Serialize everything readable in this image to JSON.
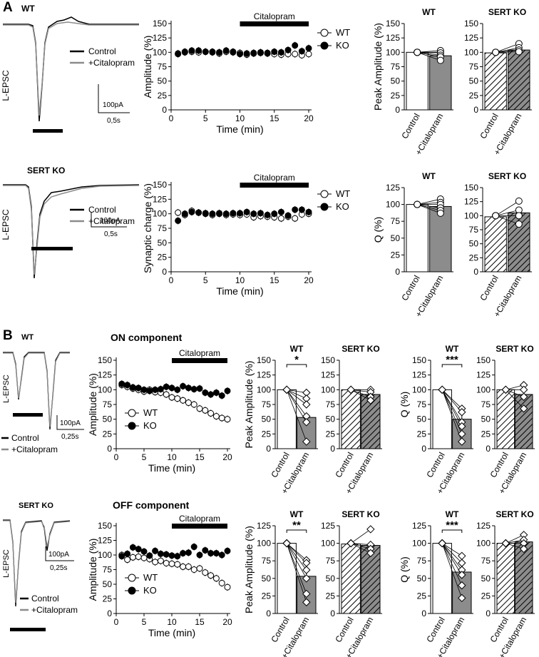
{
  "figure": {
    "panel_a_label": "A",
    "panel_b_label": "B",
    "wt": "WT",
    "sert_ko": "SERT KO",
    "l_epsc": "L-EPSC",
    "control": "Control",
    "citalopram": "+Citalopram",
    "scale_pa": "100pA",
    "scale_05s": "0,5s",
    "scale_025s": "0,25s",
    "on_component": "ON component",
    "off_component": "OFF component",
    "bar_label": "Citalopram"
  },
  "colors": {
    "control_trace": "#000000",
    "citalopram_trace": "#8c8c8c",
    "bar_fill": "#8c8c8c"
  },
  "chart_data": [
    {
      "id": "A-wt-time",
      "type": "line",
      "title": "",
      "xlabel": "Time (min)",
      "ylabel": "Amplitude (%)",
      "xlim": [
        0,
        20
      ],
      "ylim": [
        0,
        150
      ],
      "xticks": [
        0,
        5,
        10,
        15,
        20
      ],
      "yticks": [
        0,
        25,
        50,
        75,
        100,
        125,
        150
      ],
      "legend_position": "top-right",
      "annotation": "Citalopram",
      "annotation_range": [
        10,
        20
      ],
      "series": [
        {
          "name": "WT",
          "marker": "open",
          "x": [
            1,
            2,
            3,
            4,
            5,
            6,
            7,
            8,
            9,
            10,
            11,
            12,
            13,
            14,
            15,
            16,
            17,
            18,
            19,
            20
          ],
          "y": [
            97,
            100,
            101,
            100,
            101,
            100,
            98,
            101,
            100,
            99,
            96,
            99,
            100,
            98,
            97,
            96,
            97,
            97,
            95,
            97
          ]
        },
        {
          "name": "KO",
          "marker": "filled",
          "x": [
            1,
            2,
            3,
            4,
            5,
            6,
            7,
            8,
            9,
            10,
            11,
            12,
            13,
            14,
            15,
            16,
            17,
            18,
            19,
            20
          ],
          "y": [
            98,
            101,
            103,
            103,
            101,
            101,
            100,
            103,
            101,
            97,
            98,
            98,
            99,
            99,
            101,
            100,
            104,
            112,
            102,
            107
          ]
        }
      ]
    },
    {
      "id": "A-ko-time",
      "type": "line",
      "title": "",
      "xlabel": "Time (min)",
      "ylabel": "Synaptic charge (%)",
      "xlim": [
        0,
        20
      ],
      "ylim": [
        0,
        150
      ],
      "xticks": [
        0,
        5,
        10,
        15,
        20
      ],
      "yticks": [
        0,
        25,
        50,
        75,
        100,
        125,
        150
      ],
      "legend_position": "top-right",
      "annotation": "Citalopram",
      "annotation_range": [
        10,
        20
      ],
      "series": [
        {
          "name": "WT",
          "marker": "open",
          "x": [
            1,
            2,
            3,
            4,
            5,
            6,
            7,
            8,
            9,
            10,
            11,
            12,
            13,
            14,
            15,
            16,
            17,
            18,
            19,
            20
          ],
          "y": [
            102,
            98,
            105,
            102,
            100,
            98,
            100,
            98,
            99,
            98,
            99,
            94,
            96,
            95,
            94,
            92,
            95,
            92,
            99,
            100
          ]
        },
        {
          "name": "KO",
          "marker": "filled",
          "x": [
            1,
            2,
            3,
            4,
            5,
            6,
            7,
            8,
            9,
            10,
            11,
            12,
            13,
            14,
            15,
            16,
            17,
            18,
            19,
            20
          ],
          "y": [
            88,
            100,
            103,
            102,
            101,
            100,
            101,
            100,
            101,
            101,
            103,
            100,
            101,
            98,
            100,
            103,
            97,
            107,
            107,
            103
          ]
        }
      ]
    },
    {
      "id": "B-on-time",
      "type": "line",
      "title": "ON component",
      "xlabel": "Time (min)",
      "ylabel": "Amplitude (%)",
      "xlim": [
        0,
        20
      ],
      "ylim": [
        0,
        150
      ],
      "xticks": [
        0,
        5,
        10,
        15,
        20
      ],
      "yticks": [
        0,
        25,
        50,
        75,
        100,
        125,
        150
      ],
      "legend_position": "bottom-left",
      "annotation": "Citalopram",
      "annotation_range": [
        10,
        20
      ],
      "series": [
        {
          "name": "WT",
          "marker": "open",
          "x": [
            1,
            2,
            3,
            4,
            5,
            6,
            7,
            8,
            9,
            10,
            11,
            12,
            13,
            14,
            15,
            16,
            17,
            18,
            19,
            20
          ],
          "y": [
            108,
            105,
            102,
            100,
            97,
            100,
            96,
            95,
            92,
            87,
            85,
            82,
            78,
            75,
            68,
            65,
            60,
            55,
            52,
            50
          ]
        },
        {
          "name": "KO",
          "marker": "filled",
          "x": [
            1,
            2,
            3,
            4,
            5,
            6,
            7,
            8,
            9,
            10,
            11,
            12,
            13,
            14,
            15,
            16,
            17,
            18,
            19,
            20
          ],
          "y": [
            110,
            108,
            104,
            103,
            100,
            98,
            100,
            101,
            105,
            103,
            100,
            106,
            103,
            101,
            102,
            95,
            92,
            95,
            90,
            98
          ]
        }
      ]
    },
    {
      "id": "B-off-time",
      "type": "line",
      "title": "OFF component",
      "xlabel": "Time (min)",
      "ylabel": "Amplitude (%)",
      "xlim": [
        0,
        20
      ],
      "ylim": [
        0,
        150
      ],
      "xticks": [
        0,
        5,
        10,
        15,
        20
      ],
      "yticks": [
        0,
        25,
        50,
        75,
        100,
        125,
        150
      ],
      "legend_position": "bottom-left",
      "annotation": "Citalopram",
      "annotation_range": [
        10,
        20
      ],
      "series": [
        {
          "name": "WT",
          "marker": "open",
          "x": [
            1,
            2,
            3,
            4,
            5,
            6,
            7,
            8,
            9,
            10,
            11,
            12,
            13,
            14,
            15,
            16,
            17,
            18,
            19,
            20
          ],
          "y": [
            100,
            92,
            96,
            97,
            95,
            93,
            88,
            90,
            86,
            85,
            84,
            80,
            80,
            75,
            77,
            70,
            65,
            60,
            52,
            45
          ]
        },
        {
          "name": "KO",
          "marker": "filled",
          "x": [
            1,
            2,
            3,
            4,
            5,
            6,
            7,
            8,
            9,
            10,
            11,
            12,
            13,
            14,
            15,
            16,
            17,
            18,
            19,
            20
          ],
          "y": [
            98,
            102,
            113,
            110,
            106,
            99,
            107,
            102,
            101,
            99,
            98,
            103,
            104,
            114,
            100,
            108,
            103,
            103,
            100,
            107
          ]
        }
      ]
    },
    {
      "id": "A-wt-peak",
      "type": "bar",
      "title": "WT",
      "ylabel": "Peak Amplitude (%)",
      "ylim": [
        0,
        150
      ],
      "yticks": [
        0,
        25,
        50,
        75,
        100,
        125,
        150
      ],
      "categories": [
        "Control",
        "+Citalopram"
      ],
      "values": [
        100,
        94
      ],
      "hatched": false,
      "marker": "circle",
      "paired": [
        [
          100,
          100
        ],
        [
          100,
          103
        ],
        [
          100,
          99
        ],
        [
          100,
          95
        ],
        [
          100,
          92
        ],
        [
          100,
          86
        ]
      ],
      "significance": ""
    },
    {
      "id": "A-ko-peak",
      "type": "bar",
      "title": "SERT KO",
      "ylabel": "",
      "ylim": [
        0,
        150
      ],
      "yticks": [
        0,
        25,
        50,
        75,
        100,
        125,
        150
      ],
      "categories": [
        "Control",
        "+Citalopram"
      ],
      "values": [
        99,
        104
      ],
      "hatched": true,
      "marker": "circle",
      "paired": [
        [
          100,
          115
        ],
        [
          100,
          108
        ],
        [
          100,
          104
        ],
        [
          100,
          101
        ]
      ],
      "significance": ""
    },
    {
      "id": "A-wt-q",
      "type": "bar",
      "title": "WT",
      "ylabel": "Q (%)",
      "ylim": [
        0,
        125
      ],
      "yticks": [
        0,
        25,
        50,
        75,
        100,
        125
      ],
      "categories": [
        "Control",
        "+Citalopram"
      ],
      "values": [
        100,
        97
      ],
      "hatched": false,
      "marker": "circle",
      "paired": [
        [
          100,
          108
        ],
        [
          100,
          103
        ],
        [
          100,
          100
        ],
        [
          100,
          95
        ],
        [
          100,
          91
        ],
        [
          100,
          87
        ]
      ],
      "significance": ""
    },
    {
      "id": "A-ko-q",
      "type": "bar",
      "title": "SERT KO",
      "ylabel": "",
      "ylim": [
        0,
        150
      ],
      "yticks": [
        0,
        25,
        50,
        75,
        100,
        125,
        150
      ],
      "categories": [
        "Control",
        "+Citalopram"
      ],
      "values": [
        98,
        105
      ],
      "hatched": true,
      "marker": "circle",
      "paired": [
        [
          100,
          126
        ],
        [
          100,
          110
        ],
        [
          100,
          100
        ],
        [
          100,
          85
        ]
      ],
      "significance": ""
    },
    {
      "id": "B-on-wt-peak",
      "type": "bar",
      "title": "WT",
      "ylabel": "Peak Amplitude (%)",
      "ylim": [
        0,
        150
      ],
      "yticks": [
        0,
        25,
        50,
        75,
        100,
        125,
        150
      ],
      "categories": [
        "Control",
        "+Citalopram"
      ],
      "values": [
        100,
        53
      ],
      "hatched": false,
      "marker": "diamond",
      "paired": [
        [
          100,
          95
        ],
        [
          100,
          85
        ],
        [
          100,
          75
        ],
        [
          100,
          55
        ],
        [
          100,
          45
        ],
        [
          100,
          12
        ]
      ],
      "significance": "*"
    },
    {
      "id": "B-on-ko-peak",
      "type": "bar",
      "title": "SERT KO",
      "ylabel": "",
      "ylim": [
        0,
        150
      ],
      "yticks": [
        0,
        25,
        50,
        75,
        100,
        125,
        150
      ],
      "categories": [
        "Control",
        "+Citalopram"
      ],
      "values": [
        100,
        92
      ],
      "hatched": true,
      "marker": "diamond",
      "paired": [
        [
          100,
          100
        ],
        [
          100,
          96
        ],
        [
          100,
          88
        ],
        [
          100,
          82
        ]
      ],
      "significance": ""
    },
    {
      "id": "B-on-wt-q",
      "type": "bar",
      "title": "WT",
      "ylabel": "Q (%)",
      "ylim": [
        0,
        150
      ],
      "yticks": [
        0,
        25,
        50,
        75,
        100,
        125,
        150
      ],
      "categories": [
        "Control",
        "+Citalopram"
      ],
      "values": [
        100,
        50
      ],
      "hatched": false,
      "marker": "diamond",
      "paired": [
        [
          100,
          68
        ],
        [
          100,
          62
        ],
        [
          100,
          45
        ],
        [
          100,
          38
        ],
        [
          100,
          25
        ],
        [
          100,
          12
        ]
      ],
      "significance": "***"
    },
    {
      "id": "B-on-ko-q",
      "type": "bar",
      "title": "SERT KO",
      "ylabel": "",
      "ylim": [
        0,
        150
      ],
      "yticks": [
        0,
        25,
        50,
        75,
        100,
        125,
        150
      ],
      "categories": [
        "Control",
        "+Citalopram"
      ],
      "values": [
        100,
        92
      ],
      "hatched": true,
      "marker": "diamond",
      "paired": [
        [
          100,
          108
        ],
        [
          100,
          100
        ],
        [
          100,
          88
        ],
        [
          100,
          68
        ]
      ],
      "significance": ""
    },
    {
      "id": "B-off-wt-peak",
      "type": "bar",
      "title": "WT",
      "ylabel": "Peak Amplitude (%)",
      "ylim": [
        0,
        125
      ],
      "yticks": [
        0,
        25,
        50,
        75,
        100,
        125
      ],
      "categories": [
        "Control",
        "+Citalopram"
      ],
      "values": [
        100,
        53
      ],
      "hatched": false,
      "marker": "diamond",
      "paired": [
        [
          100,
          76
        ],
        [
          100,
          72
        ],
        [
          100,
          62
        ],
        [
          100,
          50
        ],
        [
          100,
          28
        ],
        [
          100,
          16
        ]
      ],
      "significance": "**"
    },
    {
      "id": "B-off-ko-peak",
      "type": "bar",
      "title": "SERT KO",
      "ylabel": "",
      "ylim": [
        0,
        125
      ],
      "yticks": [
        0,
        25,
        50,
        75,
        100,
        125
      ],
      "categories": [
        "Control",
        "+Citalopram"
      ],
      "values": [
        99,
        97
      ],
      "hatched": true,
      "marker": "diamond",
      "paired": [
        [
          100,
          120
        ],
        [
          100,
          98
        ],
        [
          100,
          92
        ],
        [
          100,
          86
        ]
      ],
      "significance": ""
    },
    {
      "id": "B-off-wt-q",
      "type": "bar",
      "title": "WT",
      "ylabel": "Q (%)",
      "ylim": [
        0,
        125
      ],
      "yticks": [
        0,
        25,
        50,
        75,
        100,
        125
      ],
      "categories": [
        "Control",
        "+Citalopram"
      ],
      "values": [
        100,
        59
      ],
      "hatched": false,
      "marker": "diamond",
      "paired": [
        [
          100,
          82
        ],
        [
          100,
          72
        ],
        [
          100,
          62
        ],
        [
          100,
          55
        ],
        [
          100,
          40
        ],
        [
          100,
          22
        ]
      ],
      "significance": "***"
    },
    {
      "id": "B-off-ko-q",
      "type": "bar",
      "title": "SERT KO",
      "ylabel": "",
      "ylim": [
        0,
        125
      ],
      "yticks": [
        0,
        25,
        50,
        75,
        100,
        125
      ],
      "categories": [
        "Control",
        "+Citalopram"
      ],
      "values": [
        100,
        102
      ],
      "hatched": true,
      "marker": "diamond",
      "paired": [
        [
          100,
          112
        ],
        [
          100,
          105
        ],
        [
          100,
          100
        ],
        [
          100,
          92
        ]
      ],
      "significance": ""
    }
  ]
}
